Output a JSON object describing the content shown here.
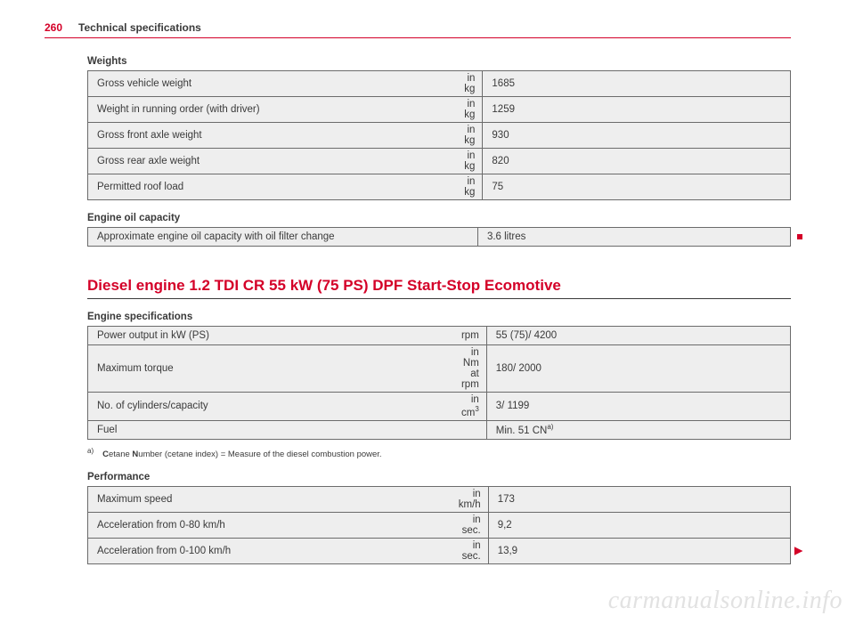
{
  "header": {
    "page_number": "260",
    "section": "Technical specifications"
  },
  "colors": {
    "accent": "#d40028",
    "row_bg": "#eeeeee",
    "border": "#6b6b6b",
    "text": "#3a3a3a",
    "watermark": "#e2e2e2"
  },
  "weights": {
    "heading": "Weights",
    "rows": [
      {
        "label": "Gross vehicle weight",
        "unit": "in kg",
        "value": "1685"
      },
      {
        "label": "Weight in running order (with driver)",
        "unit": "in kg",
        "value": "1259"
      },
      {
        "label": "Gross front axle weight",
        "unit": "in kg",
        "value": "930"
      },
      {
        "label": "Gross rear axle weight",
        "unit": "in kg",
        "value": "820"
      },
      {
        "label": "Permitted roof load",
        "unit": "in kg",
        "value": "75"
      }
    ]
  },
  "oil": {
    "heading": "Engine oil capacity",
    "rows": [
      {
        "label": "Approximate engine oil capacity with oil filter change",
        "unit": "",
        "value": "3.6 litres"
      }
    ]
  },
  "engine_title": "Diesel engine 1.2 TDI CR 55 kW (75 PS) DPF Start-Stop Ecomotive",
  "engine_spec": {
    "heading": "Engine specifications",
    "rows": [
      {
        "label": "Power output in kW (PS)",
        "unit": "rpm",
        "value": "55 (75)/ 4200"
      },
      {
        "label": "Maximum torque",
        "unit": "in Nm at rpm",
        "value": "180/ 2000"
      },
      {
        "label": "No. of cylinders/capacity",
        "unit_prefix": "in cm",
        "unit_sup": "3",
        "value": "3/ 1199"
      },
      {
        "label": "Fuel",
        "unit": "",
        "value_prefix": "Min. 51 CN",
        "value_sup": "a)"
      }
    ]
  },
  "footnote": {
    "marker": "a)",
    "text_bold1": "C",
    "text_mid": "etane ",
    "text_bold2": "N",
    "text_rest": "umber (cetane index) = Measure of the diesel combustion power."
  },
  "performance": {
    "heading": "Performance",
    "rows": [
      {
        "label": "Maximum speed",
        "unit": "in km/h",
        "value": "173"
      },
      {
        "label": "Acceleration from 0-80 km/h",
        "unit": "in sec.",
        "value": "9,2"
      },
      {
        "label": "Acceleration from 0-100 km/h",
        "unit": "in sec.",
        "value": "13,9"
      }
    ]
  },
  "watermark": "carmanualsonline.info"
}
